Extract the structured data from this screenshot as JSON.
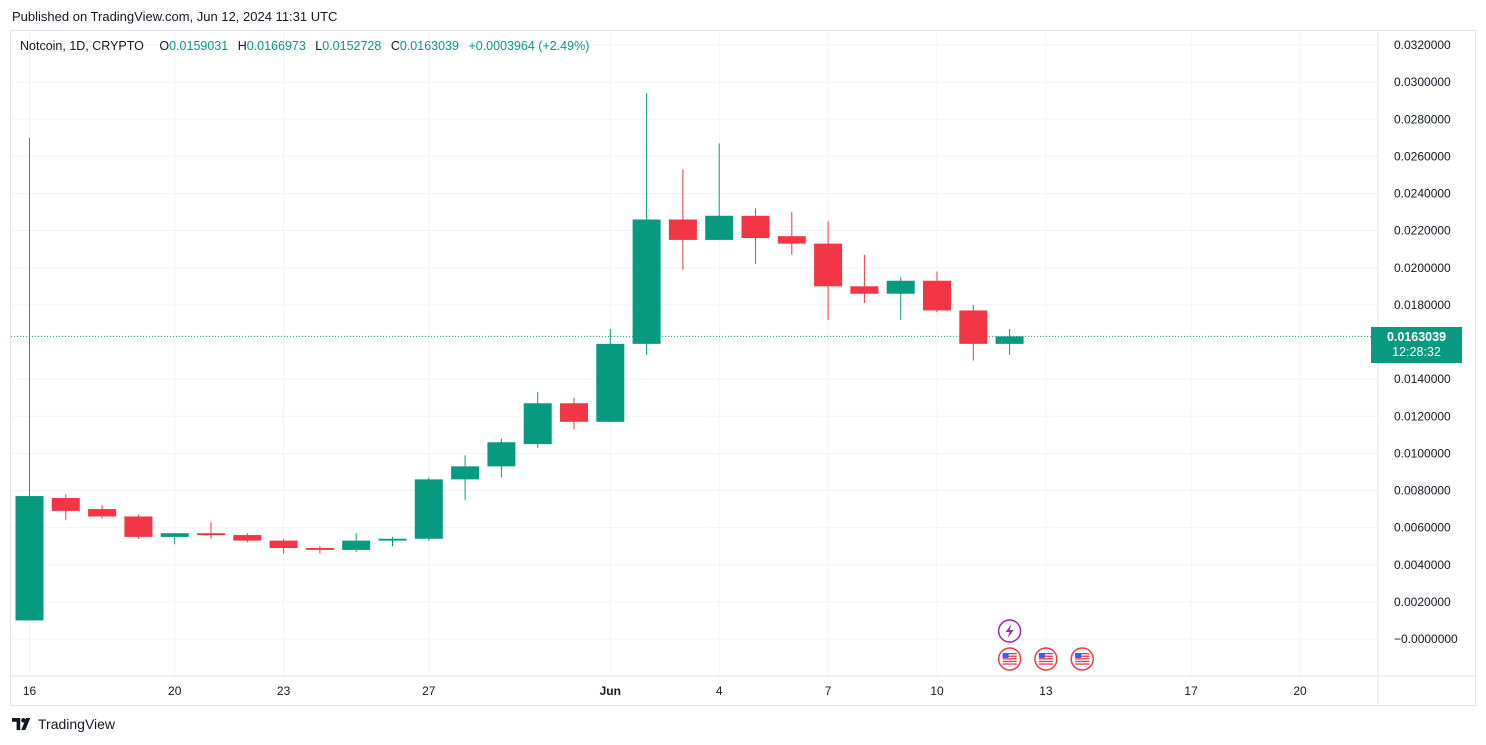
{
  "header": {
    "published": "Published on TradingView.com, Jun 12, 2024 11:31 UTC"
  },
  "legend": {
    "symbol": "Notcoin, 1D, CRYPTO",
    "open_label": "O",
    "open": "0.0159031",
    "high_label": "H",
    "high": "0.0166973",
    "low_label": "L",
    "low": "0.0152728",
    "close_label": "C",
    "close": "0.0163039",
    "change": "+0.0003964 (+2.49%)"
  },
  "price_badge": {
    "price": "0.0163039",
    "countdown": "12:28:32"
  },
  "footer": {
    "brand": "TradingView"
  },
  "colors": {
    "up": "#089981",
    "down": "#f23645",
    "grid": "#f0f3fa",
    "event_purple": "#9c27b0",
    "event_red": "#f23645"
  },
  "events": [
    {
      "day": 12,
      "icon": "lightning-icon"
    },
    {
      "day": 12,
      "icon": "us-flag-icon"
    },
    {
      "day": 13,
      "icon": "us-flag-icon"
    },
    {
      "day": 14,
      "icon": "us-flag-icon"
    }
  ],
  "chart_data": {
    "type": "candlestick",
    "ylim": [
      -0.001,
      0.0325
    ],
    "y_ticks": [
      "0.0320000",
      "0.0300000",
      "0.0280000",
      "0.0260000",
      "0.0240000",
      "0.0220000",
      "0.0200000",
      "0.0180000",
      "0.0160000",
      "0.0140000",
      "0.0120000",
      "0.0100000",
      "0.0080000",
      "0.0060000",
      "0.0040000",
      "0.0020000",
      "−0.0000000"
    ],
    "y_tick_values": [
      0.032,
      0.03,
      0.028,
      0.026,
      0.024,
      0.022,
      0.02,
      0.018,
      0.016,
      0.014,
      0.012,
      0.01,
      0.008,
      0.006,
      0.004,
      0.002,
      0.0
    ],
    "x_ticks": [
      {
        "day": 16,
        "label": "16",
        "bold": false
      },
      {
        "day": 20,
        "label": "20",
        "bold": false
      },
      {
        "day": 23,
        "label": "23",
        "bold": false
      },
      {
        "day": 27,
        "label": "27",
        "bold": false
      },
      {
        "day": 32,
        "label": "Jun",
        "bold": true
      },
      {
        "day": 35,
        "label": "4",
        "bold": false
      },
      {
        "day": 38,
        "label": "7",
        "bold": false
      },
      {
        "day": 41,
        "label": "10",
        "bold": false
      },
      {
        "day": 44,
        "label": "13",
        "bold": false
      },
      {
        "day": 48,
        "label": "17",
        "bold": false
      },
      {
        "day": 51,
        "label": "20",
        "bold": false
      }
    ],
    "last_price": 0.0163039,
    "candles": [
      {
        "date": "2024-05-16",
        "open": 0.001,
        "high": 0.027,
        "low": 0.001,
        "close": 0.0077
      },
      {
        "date": "2024-05-17",
        "open": 0.0076,
        "high": 0.0078,
        "low": 0.0064,
        "close": 0.0069
      },
      {
        "date": "2024-05-18",
        "open": 0.007,
        "high": 0.0072,
        "low": 0.0065,
        "close": 0.0066
      },
      {
        "date": "2024-05-19",
        "open": 0.0066,
        "high": 0.0067,
        "low": 0.0054,
        "close": 0.0055
      },
      {
        "date": "2024-05-20",
        "open": 0.0055,
        "high": 0.0057,
        "low": 0.0051,
        "close": 0.0057
      },
      {
        "date": "2024-05-21",
        "open": 0.0057,
        "high": 0.0063,
        "low": 0.0054,
        "close": 0.0056
      },
      {
        "date": "2024-05-22",
        "open": 0.0056,
        "high": 0.0057,
        "low": 0.0052,
        "close": 0.0053
      },
      {
        "date": "2024-05-23",
        "open": 0.0053,
        "high": 0.0054,
        "low": 0.0046,
        "close": 0.0049
      },
      {
        "date": "2024-05-24",
        "open": 0.0049,
        "high": 0.005,
        "low": 0.0046,
        "close": 0.0048
      },
      {
        "date": "2024-05-25",
        "open": 0.0048,
        "high": 0.0057,
        "low": 0.0047,
        "close": 0.0053
      },
      {
        "date": "2024-05-26",
        "open": 0.0053,
        "high": 0.0055,
        "low": 0.005,
        "close": 0.0054
      },
      {
        "date": "2024-05-27",
        "open": 0.0054,
        "high": 0.0087,
        "low": 0.0053,
        "close": 0.0086
      },
      {
        "date": "2024-05-28",
        "open": 0.0086,
        "high": 0.0099,
        "low": 0.0075,
        "close": 0.0093
      },
      {
        "date": "2024-05-29",
        "open": 0.0093,
        "high": 0.0108,
        "low": 0.0087,
        "close": 0.0106
      },
      {
        "date": "2024-05-30",
        "open": 0.0105,
        "high": 0.0133,
        "low": 0.0103,
        "close": 0.0127
      },
      {
        "date": "2024-05-31",
        "open": 0.0127,
        "high": 0.013,
        "low": 0.0113,
        "close": 0.0117
      },
      {
        "date": "2024-06-01",
        "open": 0.0117,
        "high": 0.0167,
        "low": 0.0117,
        "close": 0.0159
      },
      {
        "date": "2024-06-02",
        "open": 0.0159,
        "high": 0.0294,
        "low": 0.0153,
        "close": 0.0226
      },
      {
        "date": "2024-06-03",
        "open": 0.0226,
        "high": 0.0253,
        "low": 0.0199,
        "close": 0.0215
      },
      {
        "date": "2024-06-04",
        "open": 0.0215,
        "high": 0.0267,
        "low": 0.0215,
        "close": 0.0228
      },
      {
        "date": "2024-06-05",
        "open": 0.0228,
        "high": 0.0232,
        "low": 0.0202,
        "close": 0.0216
      },
      {
        "date": "2024-06-06",
        "open": 0.0217,
        "high": 0.023,
        "low": 0.0207,
        "close": 0.0213
      },
      {
        "date": "2024-06-07",
        "open": 0.0213,
        "high": 0.0225,
        "low": 0.0172,
        "close": 0.019
      },
      {
        "date": "2024-06-08",
        "open": 0.019,
        "high": 0.0207,
        "low": 0.0181,
        "close": 0.0186
      },
      {
        "date": "2024-06-09",
        "open": 0.0186,
        "high": 0.0195,
        "low": 0.0172,
        "close": 0.0193
      },
      {
        "date": "2024-06-10",
        "open": 0.0193,
        "high": 0.0198,
        "low": 0.0176,
        "close": 0.0177
      },
      {
        "date": "2024-06-11",
        "open": 0.0177,
        "high": 0.018,
        "low": 0.015,
        "close": 0.0159
      },
      {
        "date": "2024-06-12",
        "open": 0.0159,
        "high": 0.0167,
        "low": 0.0153,
        "close": 0.0163
      }
    ]
  }
}
